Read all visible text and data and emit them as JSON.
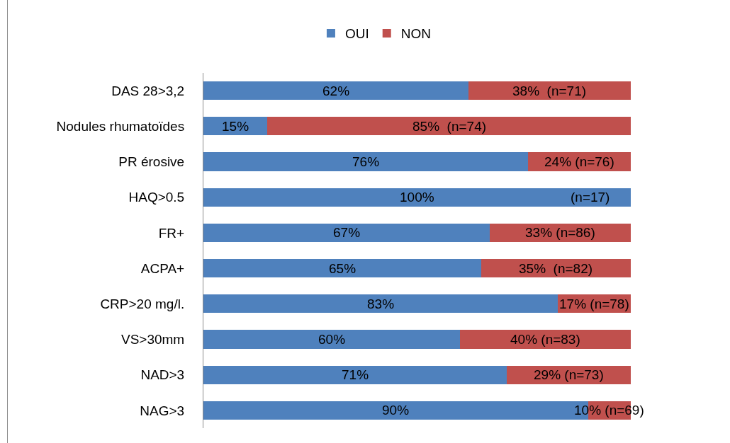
{
  "chart_data": {
    "type": "bar",
    "orientation": "horizontal",
    "stacked": true,
    "legend": "top",
    "categories": [
      "DAS 28>3,2",
      "Nodules rhumatoïdes",
      "PR érosive",
      "HAQ>0.5",
      "FR+",
      "ACPA+",
      "CRP>20 mg/l.",
      "VS>30mm",
      "NAD>3",
      "NAG>3"
    ],
    "series": [
      {
        "name": "OUI",
        "color": "#4f81bd",
        "values": [
          62,
          15,
          76,
          100,
          67,
          65,
          83,
          60,
          71,
          90
        ],
        "value_labels": [
          "62%",
          "15%",
          "76%",
          "100%",
          "67%",
          "65%",
          "83%",
          "60%",
          "71%",
          "90%"
        ]
      },
      {
        "name": "NON",
        "color": "#c0504d",
        "values": [
          38,
          85,
          24,
          null,
          33,
          35,
          17,
          40,
          29,
          10
        ],
        "value_labels": [
          "38%  (n=71)",
          "85%  (n=74)",
          "24% (n=76)",
          null,
          "33% (n=86)",
          "35%  (n=82)",
          "17% (n=78)",
          "40% (n=83)",
          "29% (n=73)",
          "10% (n=69)"
        ]
      }
    ],
    "annotations": [
      {
        "text": "(n=17)",
        "x": 100,
        "y": "HAQ>0.5"
      }
    ]
  }
}
